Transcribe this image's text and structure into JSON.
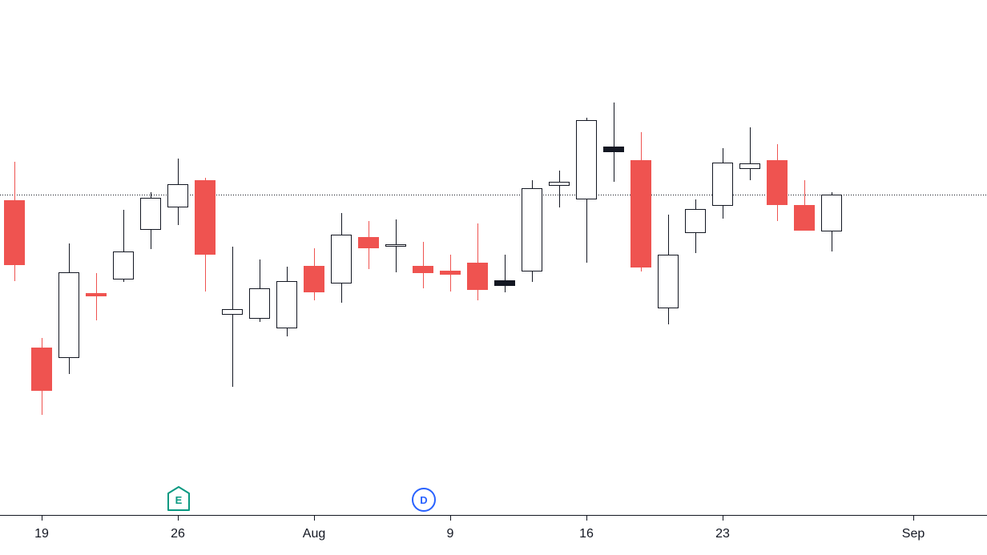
{
  "chart_data": {
    "type": "candlestick",
    "title": "",
    "xlabel": "",
    "ylabel": "",
    "ylim": [
      0,
      680
    ],
    "x_ticks": [
      {
        "label": "19",
        "x": 2
      },
      {
        "label": "26",
        "x": 7
      },
      {
        "label": "Aug",
        "x": 12
      },
      {
        "label": "9",
        "x": 17
      },
      {
        "label": "16",
        "x": 22
      },
      {
        "label": "23",
        "x": 27
      },
      {
        "label": "Sep",
        "x": 34
      }
    ],
    "current_price": 437,
    "colors": {
      "up": "#ffffff",
      "up_border": "#131722",
      "down": "#ef5350",
      "wick_up": "#131722",
      "wick_down": "#ef5350",
      "neutral": "#131722",
      "price_line": "#131722"
    },
    "candles": [
      {
        "x": 1,
        "o": 430,
        "h": 478,
        "l": 329,
        "c": 350
      },
      {
        "x": 2,
        "o": 246,
        "h": 258,
        "l": 162,
        "c": 193
      },
      {
        "x": 3,
        "o": 234,
        "h": 376,
        "l": 213,
        "c": 340
      },
      {
        "x": 4,
        "o": 314,
        "h": 339,
        "l": 280,
        "c": 311
      },
      {
        "x": 5,
        "o": 332,
        "h": 418,
        "l": 328,
        "c": 366
      },
      {
        "x": 6,
        "o": 394,
        "h": 440,
        "l": 369,
        "c": 433
      },
      {
        "x": 7,
        "o": 422,
        "h": 482,
        "l": 399,
        "c": 450
      },
      {
        "x": 8,
        "o": 455,
        "h": 458,
        "l": 316,
        "c": 363
      },
      {
        "x": 9,
        "o": 288,
        "h": 372,
        "l": 197,
        "c": 294
      },
      {
        "x": 10,
        "o": 283,
        "h": 356,
        "l": 278,
        "c": 320
      },
      {
        "x": 11,
        "o": 271,
        "h": 347,
        "l": 260,
        "c": 329
      },
      {
        "x": 12,
        "o": 348,
        "h": 370,
        "l": 305,
        "c": 316
      },
      {
        "x": 13,
        "o": 327,
        "h": 414,
        "l": 302,
        "c": 387
      },
      {
        "x": 14,
        "o": 384,
        "h": 404,
        "l": 344,
        "c": 371
      },
      {
        "x": 15,
        "o": 373,
        "h": 406,
        "l": 340,
        "c": 375
      },
      {
        "x": 16,
        "o": 348,
        "h": 378,
        "l": 320,
        "c": 340
      },
      {
        "x": 17,
        "o": 342,
        "h": 362,
        "l": 316,
        "c": 338
      },
      {
        "x": 18,
        "o": 352,
        "h": 401,
        "l": 305,
        "c": 319
      },
      {
        "x": 19,
        "o": 330,
        "h": 362,
        "l": 315,
        "c": 330
      },
      {
        "x": 20,
        "o": 342,
        "h": 455,
        "l": 328,
        "c": 445
      },
      {
        "x": 21,
        "o": 449,
        "h": 467,
        "l": 421,
        "c": 453
      },
      {
        "x": 22,
        "o": 432,
        "h": 533,
        "l": 352,
        "c": 530
      },
      {
        "x": 23,
        "o": 497,
        "h": 552,
        "l": 453,
        "c": 497
      },
      {
        "x": 24,
        "o": 480,
        "h": 515,
        "l": 341,
        "c": 347
      },
      {
        "x": 25,
        "o": 296,
        "h": 412,
        "l": 275,
        "c": 362
      },
      {
        "x": 26,
        "o": 390,
        "h": 431,
        "l": 364,
        "c": 419
      },
      {
        "x": 27,
        "o": 424,
        "h": 495,
        "l": 407,
        "c": 477
      },
      {
        "x": 28,
        "o": 470,
        "h": 521,
        "l": 455,
        "c": 476
      },
      {
        "x": 29,
        "o": 480,
        "h": 500,
        "l": 404,
        "c": 425
      },
      {
        "x": 30,
        "o": 424,
        "h": 455,
        "l": 393,
        "c": 393
      },
      {
        "x": 31,
        "o": 392,
        "h": 440,
        "l": 366,
        "c": 437
      }
    ],
    "events": [
      {
        "x": 7,
        "label": "E",
        "kind": "earnings",
        "color": "#089981"
      },
      {
        "x": 16,
        "label": "D",
        "kind": "dividend",
        "color": "#2962ff"
      }
    ]
  }
}
